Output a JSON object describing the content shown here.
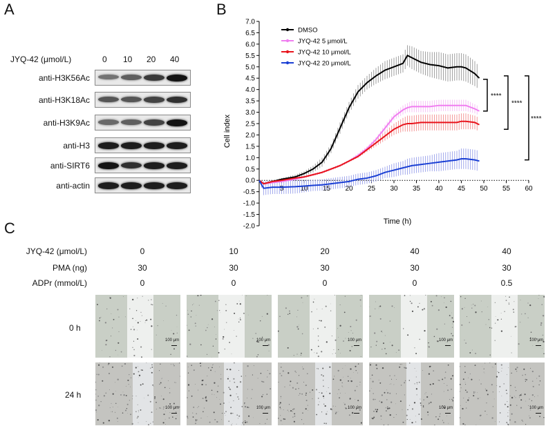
{
  "panel_a": {
    "letter": "A",
    "header_label": "JYQ-42 (μmol/L)",
    "concentrations": [
      "0",
      "10",
      "20",
      "40"
    ],
    "blots": [
      {
        "label": "anti-H3K56Ac",
        "intensity": [
          0.45,
          0.55,
          0.75,
          0.95
        ]
      },
      {
        "label": "anti-H3K18Ac",
        "intensity": [
          0.6,
          0.6,
          0.7,
          0.8
        ]
      },
      {
        "label": "anti-H3K9Ac",
        "intensity": [
          0.5,
          0.55,
          0.7,
          0.95
        ]
      },
      {
        "label": "anti-H3",
        "intensity": [
          0.9,
          0.9,
          0.9,
          0.9
        ]
      },
      {
        "label": "anti-SIRT6",
        "intensity": [
          0.95,
          0.8,
          0.9,
          0.9
        ]
      },
      {
        "label": "anti-actin",
        "intensity": [
          0.9,
          0.9,
          0.9,
          0.9
        ]
      }
    ]
  },
  "panel_b": {
    "letter": "B",
    "significance": [
      "****",
      "****",
      "****"
    ]
  },
  "chart_data": {
    "type": "line",
    "title": "",
    "xlabel": "Time (h)",
    "ylabel": "Cell index",
    "xlim": [
      0,
      60
    ],
    "ylim": [
      -2.0,
      7.0
    ],
    "xticks": [
      "5",
      "10",
      "15",
      "20",
      "25",
      "30",
      "35",
      "40",
      "45",
      "50",
      "55",
      "60"
    ],
    "yticks": [
      "-2.0",
      "-1.5",
      "-1.0",
      "-0.5",
      "0.0",
      "0.5",
      "1.0",
      "1.5",
      "2.0",
      "2.5",
      "3.0",
      "3.5",
      "4.0",
      "4.5",
      "5.0",
      "5.5",
      "6.0",
      "6.5",
      "7.0"
    ],
    "legend_position": "top-left",
    "series": [
      {
        "name": "DMSO",
        "color": "#000000",
        "err_color": "#888888",
        "x": [
          0,
          1,
          3,
          5,
          8,
          10,
          12,
          14,
          16,
          18,
          20,
          22,
          24,
          26,
          28,
          30,
          32,
          33,
          34,
          36,
          38,
          40,
          42,
          44,
          45,
          46,
          48,
          49
        ],
        "y": [
          0.0,
          -0.15,
          -0.05,
          0.05,
          0.15,
          0.3,
          0.5,
          0.8,
          1.4,
          2.3,
          3.2,
          3.9,
          4.3,
          4.6,
          4.85,
          5.0,
          5.15,
          5.5,
          5.4,
          5.2,
          5.1,
          5.05,
          4.95,
          5.0,
          5.0,
          4.95,
          4.7,
          4.5
        ],
        "err": [
          0,
          0.05,
          0.05,
          0.05,
          0.1,
          0.1,
          0.15,
          0.2,
          0.2,
          0.25,
          0.25,
          0.3,
          0.3,
          0.35,
          0.4,
          0.4,
          0.4,
          0.45,
          0.5,
          0.5,
          0.55,
          0.6,
          0.6,
          0.6,
          0.6,
          0.6,
          0.55,
          0.5
        ]
      },
      {
        "name": "JYQ-42 5 μmol/L",
        "color": "#f07ef0",
        "err_color": "#f4b3f4",
        "x": [
          0,
          1,
          3,
          5,
          8,
          10,
          12,
          14,
          16,
          18,
          20,
          22,
          24,
          26,
          28,
          30,
          32,
          33,
          34,
          36,
          38,
          40,
          42,
          44,
          45,
          46,
          48,
          49
        ],
        "y": [
          0.0,
          -0.15,
          -0.1,
          -0.05,
          0.05,
          0.15,
          0.25,
          0.35,
          0.5,
          0.65,
          0.85,
          1.1,
          1.4,
          1.8,
          2.3,
          2.8,
          3.1,
          3.2,
          3.25,
          3.25,
          3.25,
          3.3,
          3.3,
          3.3,
          3.3,
          3.3,
          3.15,
          3.05
        ],
        "err": [
          0,
          0.05,
          0.05,
          0.05,
          0.05,
          0.05,
          0.05,
          0.05,
          0.05,
          0.05,
          0.05,
          0.1,
          0.1,
          0.1,
          0.15,
          0.15,
          0.2,
          0.2,
          0.25,
          0.25,
          0.25,
          0.25,
          0.25,
          0.25,
          0.25,
          0.25,
          0.2,
          0.2
        ]
      },
      {
        "name": "JYQ-42 10 μmol/L",
        "color": "#e8141c",
        "err_color": "#f08080",
        "x": [
          0,
          1,
          3,
          5,
          8,
          10,
          12,
          14,
          16,
          18,
          20,
          22,
          24,
          26,
          28,
          30,
          32,
          33,
          34,
          36,
          38,
          40,
          42,
          44,
          45,
          46,
          48,
          49
        ],
        "y": [
          0.0,
          -0.15,
          -0.05,
          0.0,
          0.1,
          0.15,
          0.25,
          0.35,
          0.5,
          0.65,
          0.85,
          1.05,
          1.35,
          1.65,
          1.95,
          2.25,
          2.45,
          2.5,
          2.5,
          2.55,
          2.55,
          2.55,
          2.55,
          2.55,
          2.6,
          2.6,
          2.55,
          2.45
        ],
        "err": [
          0,
          0.05,
          0.05,
          0.05,
          0.05,
          0.05,
          0.05,
          0.05,
          0.05,
          0.05,
          0.05,
          0.05,
          0.1,
          0.15,
          0.2,
          0.25,
          0.3,
          0.35,
          0.35,
          0.35,
          0.35,
          0.35,
          0.35,
          0.35,
          0.35,
          0.35,
          0.3,
          0.3
        ]
      },
      {
        "name": "JYQ-42 20 μmol/L",
        "color": "#1a3fd4",
        "err_color": "#8c95e8",
        "x": [
          0,
          1,
          3,
          5,
          8,
          10,
          12,
          14,
          16,
          18,
          20,
          22,
          24,
          26,
          28,
          30,
          32,
          33,
          34,
          36,
          38,
          40,
          42,
          44,
          45,
          46,
          48,
          49
        ],
        "y": [
          0.0,
          -0.35,
          -0.3,
          -0.3,
          -0.28,
          -0.25,
          -0.22,
          -0.2,
          -0.15,
          -0.1,
          -0.05,
          0.05,
          0.1,
          0.2,
          0.35,
          0.45,
          0.55,
          0.6,
          0.65,
          0.7,
          0.75,
          0.8,
          0.85,
          0.9,
          0.95,
          0.95,
          0.9,
          0.85
        ],
        "err": [
          0,
          0.3,
          0.3,
          0.3,
          0.3,
          0.28,
          0.25,
          0.25,
          0.25,
          0.25,
          0.25,
          0.25,
          0.25,
          0.25,
          0.25,
          0.3,
          0.3,
          0.35,
          0.35,
          0.35,
          0.35,
          0.4,
          0.4,
          0.4,
          0.45,
          0.45,
          0.45,
          0.45
        ]
      }
    ]
  },
  "panel_c": {
    "letter": "C",
    "rows": [
      {
        "label": "JYQ-42 (μmol/L)",
        "values": [
          "0",
          "10",
          "20",
          "40",
          "40"
        ]
      },
      {
        "label": "PMA (ng)",
        "values": [
          "30",
          "30",
          "30",
          "30",
          "30"
        ]
      },
      {
        "label": "ADPr (mmol/L)",
        "values": [
          "0",
          "0",
          "0",
          "0",
          "0.5"
        ]
      }
    ],
    "time_labels": [
      "0 h",
      "24 h"
    ],
    "scale_label": "100 μm"
  }
}
